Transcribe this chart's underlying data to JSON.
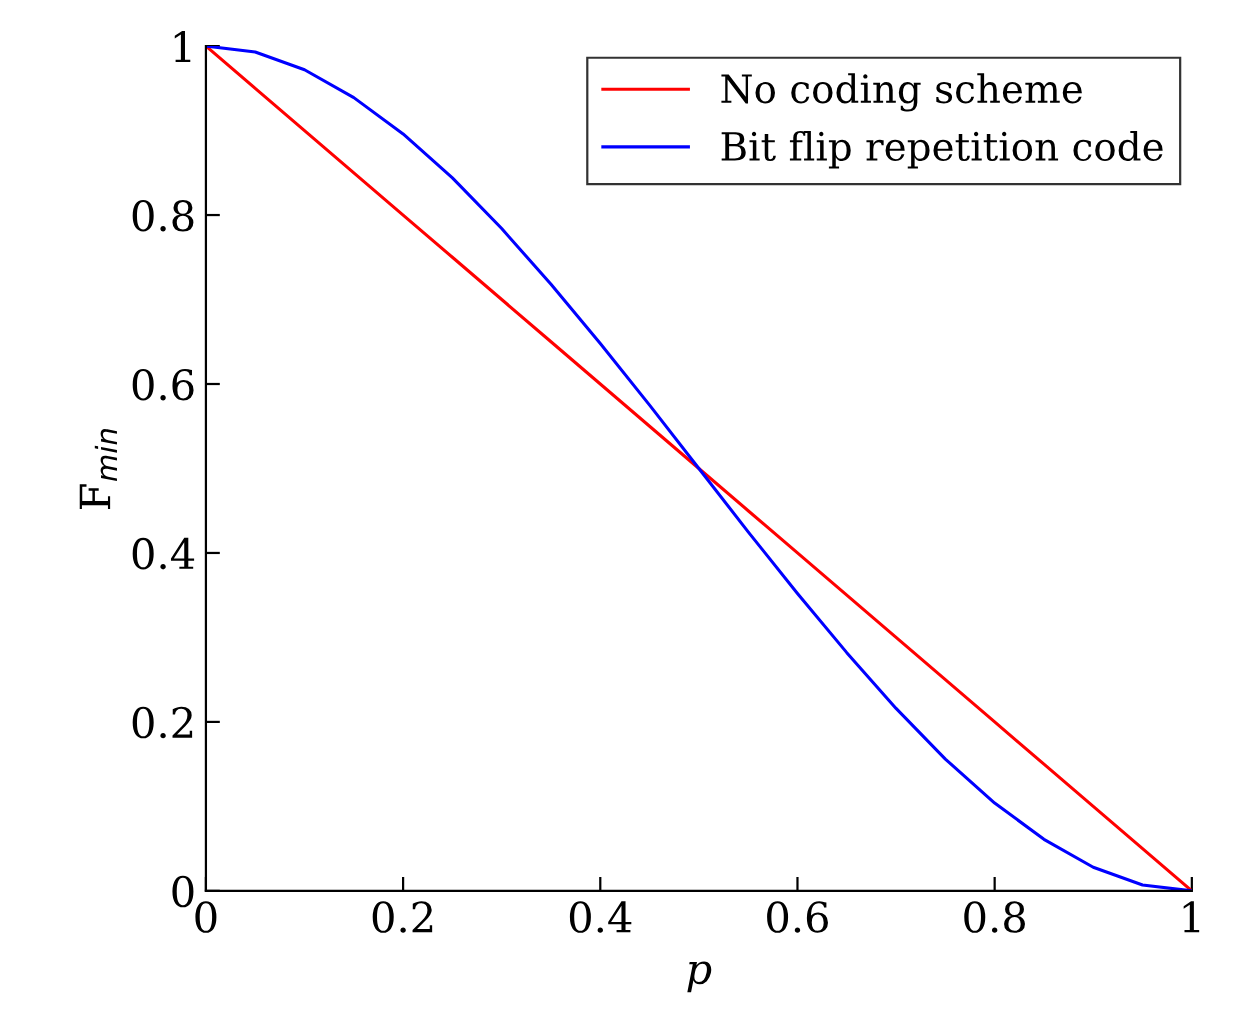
{
  "chart_data": {
    "type": "line",
    "xlabel": "p",
    "ylabel": "F$_{min}$",
    "x": [
      0,
      0.05,
      0.1,
      0.15,
      0.2,
      0.25,
      0.3,
      0.35,
      0.4,
      0.45,
      0.5,
      0.55,
      0.6,
      0.65,
      0.7,
      0.75,
      0.8,
      0.85,
      0.9,
      0.95,
      1
    ],
    "series": [
      {
        "name": "No coding scheme",
        "color": "#ff0000",
        "values": [
          1,
          0.95,
          0.9,
          0.85,
          0.8,
          0.75,
          0.7,
          0.65,
          0.6,
          0.55,
          0.5,
          0.45,
          0.4,
          0.35,
          0.3,
          0.25,
          0.2,
          0.15,
          0.1,
          0.05,
          0
        ]
      },
      {
        "name": "Bit flip repetition code",
        "color": "#0000ff",
        "values": [
          1,
          0.993,
          0.972,
          0.939,
          0.896,
          0.844,
          0.784,
          0.718,
          0.648,
          0.575,
          0.5,
          0.425,
          0.352,
          0.282,
          0.216,
          0.156,
          0.104,
          0.061,
          0.028,
          0.007,
          0
        ]
      }
    ],
    "xlim": [
      0,
      1
    ],
    "ylim": [
      0,
      1
    ],
    "xticks": [
      0,
      0.2,
      0.4,
      0.6,
      0.8,
      1
    ],
    "yticks": [
      0,
      0.2,
      0.4,
      0.6,
      0.8,
      1
    ],
    "grid": false,
    "legend": "top right",
    "marker": "none",
    "line_style": "solid"
  }
}
